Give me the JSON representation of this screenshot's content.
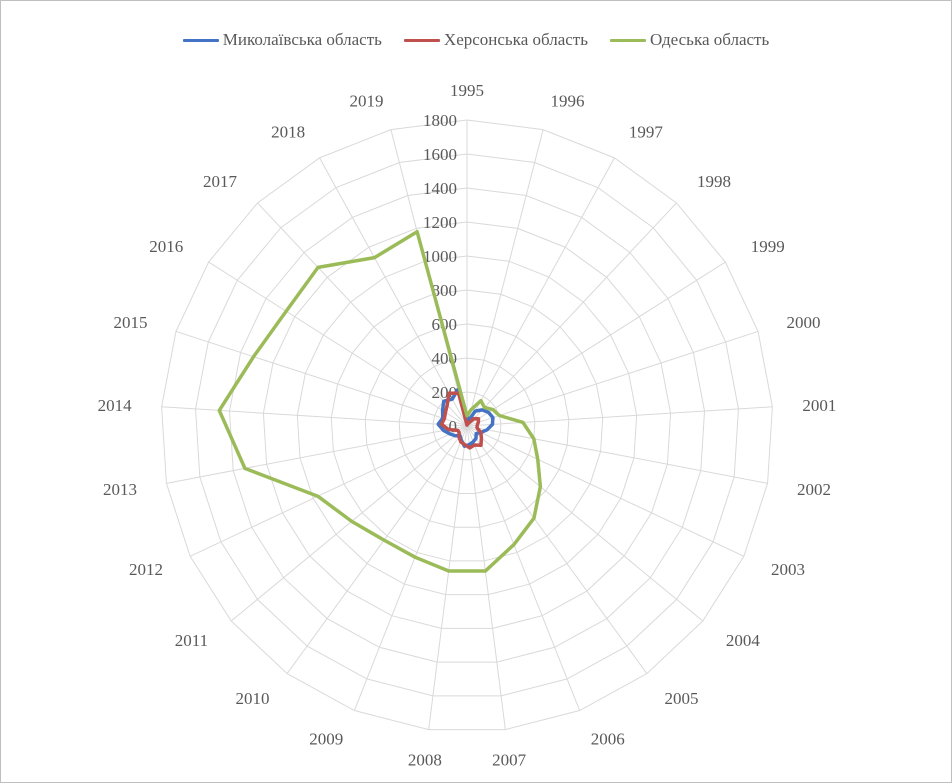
{
  "chart_data": {
    "type": "radar",
    "title": "",
    "categories": [
      "1995",
      "1996",
      "1997",
      "1998",
      "1999",
      "2000",
      "2001",
      "2002",
      "2003",
      "2004",
      "2005",
      "2006",
      "2007",
      "2008",
      "2009",
      "2010",
      "2011",
      "2012",
      "2013",
      "2014",
      "2015",
      "2016",
      "2017",
      "2018",
      "2019"
    ],
    "radial_ticks": [
      0,
      200,
      400,
      600,
      800,
      1000,
      1200,
      1400,
      1600,
      1800
    ],
    "rlim": [
      0,
      1800
    ],
    "grid": true,
    "legend_position": "top",
    "series": [
      {
        "name": "Миколаївська область",
        "color": "#4472c4",
        "values": [
          60,
          30,
          100,
          130,
          150,
          160,
          150,
          120,
          90,
          70,
          90,
          100,
          110,
          120,
          90,
          70,
          90,
          110,
          140,
          170,
          150,
          170,
          200,
          180,
          220
        ]
      },
      {
        "name": "Херсонська область",
        "color": "#c0504d",
        "values": [
          5,
          10,
          20,
          60,
          80,
          70,
          60,
          60,
          90,
          110,
          140,
          120,
          130,
          110,
          100,
          80,
          60,
          60,
          110,
          150,
          140,
          150,
          170,
          220,
          200
        ]
      },
      {
        "name": "Одеська область",
        "color": "#9bbb59",
        "values": [
          60,
          100,
          170,
          150,
          180,
          200,
          330,
          400,
          460,
          560,
          670,
          750,
          860,
          860,
          830,
          830,
          880,
          970,
          1330,
          1460,
          1320,
          1260,
          1280,
          1130,
          1180
        ]
      }
    ]
  }
}
